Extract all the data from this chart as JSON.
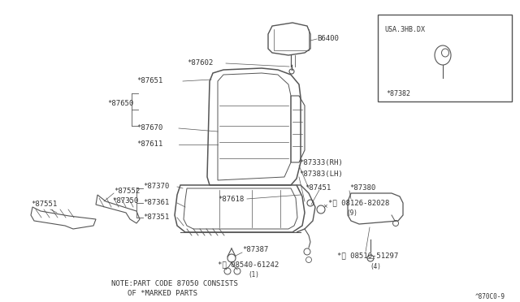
{
  "bg_color": "#ffffff",
  "line_color": "#555555",
  "text_color": "#333333",
  "fig_width": 6.4,
  "fig_height": 3.72,
  "note_line1": "NOTE:PART CODE 87050 CONSISTS",
  "note_line2": "OF *MARKED PARTS",
  "footer": "^870C0-9",
  "inset_label": "USA.3HB.DX",
  "inset_part": "*87382"
}
